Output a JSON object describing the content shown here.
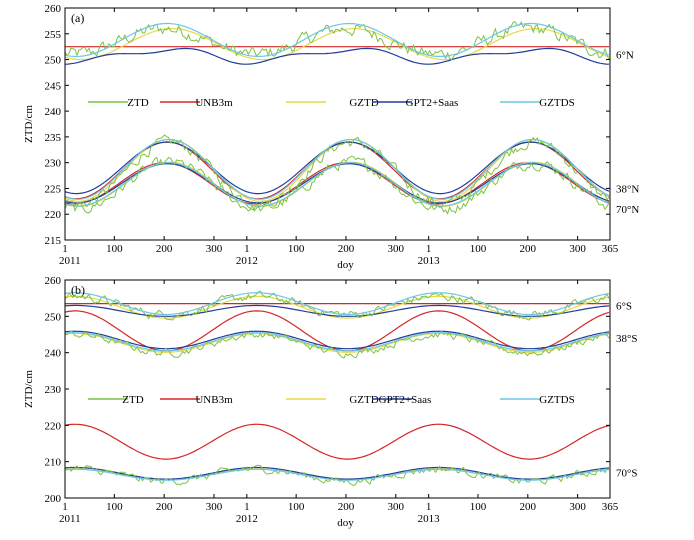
{
  "chart_data": [
    {
      "type": "line",
      "panel_label": "(a)",
      "ylabel": "ZTD/cm",
      "xlabel": "doy",
      "ylim": [
        215,
        260
      ],
      "yticks": [
        215,
        220,
        225,
        230,
        235,
        240,
        245,
        250,
        255,
        260
      ],
      "x_domain": [
        1,
        1095
      ],
      "xticks": [
        {
          "x": 1,
          "label": "1"
        },
        {
          "x": 100,
          "label": "100"
        },
        {
          "x": 200,
          "label": "200"
        },
        {
          "x": 300,
          "label": "300"
        },
        {
          "x": 366,
          "label": "1"
        },
        {
          "x": 465,
          "label": "100"
        },
        {
          "x": 565,
          "label": "200"
        },
        {
          "x": 665,
          "label": "300"
        },
        {
          "x": 731,
          "label": "1"
        },
        {
          "x": 830,
          "label": "100"
        },
        {
          "x": 930,
          "label": "200"
        },
        {
          "x": 1030,
          "label": "300"
        },
        {
          "x": 1095,
          "label": "365"
        }
      ],
      "year_labels": [
        {
          "x": 1,
          "label": "2011"
        },
        {
          "x": 366,
          "label": "2012"
        },
        {
          "x": 731,
          "label": "2013"
        }
      ],
      "legend": [
        "ZTD",
        "UNB3m",
        "GZTD",
        "GPT2+Saas",
        "GZTDS"
      ],
      "legend_placement": "middle",
      "latitude_labels": [
        {
          "label": "6°N",
          "y": 251
        },
        {
          "label": "38°N",
          "y": 225
        },
        {
          "label": "70°N",
          "y": 221
        }
      ],
      "series": [
        {
          "name": "ZTD",
          "site": "6°N",
          "mean": 253.5,
          "amp": 2.5,
          "phase_doy": 200,
          "noise": 1.4
        },
        {
          "name": "UNB3m",
          "site": "6°N",
          "mean": 252.5,
          "amp": 0.0,
          "phase_doy": 200
        },
        {
          "name": "GZTD",
          "site": "6°N",
          "mean": 253.0,
          "amp": 3.0,
          "phase_doy": 215
        },
        {
          "name": "GPT2+Saas",
          "site": "6°N",
          "mean": 250.8,
          "amp": 1.2,
          "phase_doy": 200,
          "semi_amp": 0.6
        },
        {
          "name": "GZTDS",
          "site": "6°N",
          "mean": 253.8,
          "amp": 3.2,
          "phase_doy": 205
        },
        {
          "name": "ZTD",
          "site": "38°N",
          "mean": 228.0,
          "amp": 6.0,
          "phase_doy": 210,
          "noise": 1.1
        },
        {
          "name": "UNB3m",
          "site": "38°N",
          "mean": 228.5,
          "amp": 5.5,
          "phase_doy": 205
        },
        {
          "name": "GZTD",
          "site": "38°N",
          "mean": 228.5,
          "amp": 6.0,
          "phase_doy": 210
        },
        {
          "name": "GPT2+Saas",
          "site": "38°N",
          "mean": 229.0,
          "amp": 5.0,
          "phase_doy": 205
        },
        {
          "name": "GZTDS",
          "site": "38°N",
          "mean": 228.7,
          "amp": 5.8,
          "phase_doy": 208
        },
        {
          "name": "ZTD",
          "site": "70°N",
          "mean": 225.5,
          "amp": 4.5,
          "phase_doy": 210,
          "noise": 1.1
        },
        {
          "name": "UNB3m",
          "site": "70°N",
          "mean": 226.0,
          "amp": 4.0,
          "phase_doy": 200
        },
        {
          "name": "GZTD",
          "site": "70°N",
          "mean": 225.8,
          "amp": 4.3,
          "phase_doy": 210
        },
        {
          "name": "GPT2+Saas",
          "site": "70°N",
          "mean": 226.0,
          "amp": 3.8,
          "phase_doy": 205
        },
        {
          "name": "GZTDS",
          "site": "70°N",
          "mean": 225.8,
          "amp": 4.2,
          "phase_doy": 208
        }
      ],
      "colors": {
        "ZTD": "#7cc242",
        "UNB3m": "#d62728",
        "GZTD": "#e8d84a",
        "GPT2+Saas": "#1f3f9a",
        "GZTDS": "#6ec6e6"
      }
    },
    {
      "type": "line",
      "panel_label": "(b)",
      "ylabel": "ZTD/cm",
      "xlabel": "doy",
      "ylim": [
        200,
        260
      ],
      "yticks": [
        200,
        210,
        220,
        230,
        240,
        250,
        260
      ],
      "x_domain": [
        1,
        1095
      ],
      "xticks": [
        {
          "x": 1,
          "label": "1"
        },
        {
          "x": 100,
          "label": "100"
        },
        {
          "x": 200,
          "label": "200"
        },
        {
          "x": 300,
          "label": "300"
        },
        {
          "x": 366,
          "label": "1"
        },
        {
          "x": 465,
          "label": "100"
        },
        {
          "x": 565,
          "label": "200"
        },
        {
          "x": 665,
          "label": "300"
        },
        {
          "x": 731,
          "label": "1"
        },
        {
          "x": 830,
          "label": "100"
        },
        {
          "x": 930,
          "label": "200"
        },
        {
          "x": 1030,
          "label": "300"
        },
        {
          "x": 1095,
          "label": "365"
        }
      ],
      "year_labels": [
        {
          "x": 1,
          "label": "2011"
        },
        {
          "x": 366,
          "label": "2012"
        },
        {
          "x": 731,
          "label": "2013"
        }
      ],
      "legend": [
        "ZTD",
        "UNB3m",
        "GZTD",
        "GPT2+Saas",
        "GZTDS"
      ],
      "legend_placement": "middle",
      "latitude_labels": [
        {
          "label": "6°S",
          "y": 253
        },
        {
          "label": "38°S",
          "y": 244
        },
        {
          "label": "70°S",
          "y": 207
        }
      ],
      "series": [
        {
          "name": "ZTD",
          "site": "6°S",
          "mean": 253.0,
          "amp": 2.5,
          "phase_doy": 20,
          "noise": 1.3
        },
        {
          "name": "UNB3m",
          "site": "6°S",
          "mean": 253.5,
          "amp": 0.0,
          "phase_doy": 20
        },
        {
          "name": "GZTD",
          "site": "6°S",
          "mean": 252.5,
          "amp": 3.0,
          "phase_doy": 20
        },
        {
          "name": "GPT2+Saas",
          "site": "6°S",
          "mean": 251.5,
          "amp": 1.5,
          "phase_doy": 20
        },
        {
          "name": "GZTDS",
          "site": "6°S",
          "mean": 253.5,
          "amp": 3.0,
          "phase_doy": 20
        },
        {
          "name": "UNB3m",
          "site": "38°S",
          "mean": 246.0,
          "amp": 5.5,
          "phase_doy": 20
        },
        {
          "name": "ZTD",
          "site": "38°S",
          "mean": 242.5,
          "amp": 2.5,
          "phase_doy": 20,
          "noise": 1.1
        },
        {
          "name": "GZTD",
          "site": "38°S",
          "mean": 242.7,
          "amp": 2.6,
          "phase_doy": 20
        },
        {
          "name": "GPT2+Saas",
          "site": "38°S",
          "mean": 243.5,
          "amp": 2.4,
          "phase_doy": 20
        },
        {
          "name": "GZTDS",
          "site": "38°S",
          "mean": 243.0,
          "amp": 2.5,
          "phase_doy": 20
        },
        {
          "name": "UNB3m",
          "site": "70°S",
          "mean": 215.5,
          "amp": 4.8,
          "phase_doy": 20
        },
        {
          "name": "ZTD",
          "site": "70°S",
          "mean": 206.3,
          "amp": 1.7,
          "phase_doy": 20,
          "noise": 1.1
        },
        {
          "name": "GZTD",
          "site": "70°S",
          "mean": 206.5,
          "amp": 1.5,
          "phase_doy": 20
        },
        {
          "name": "GPT2+Saas",
          "site": "70°S",
          "mean": 206.8,
          "amp": 1.6,
          "phase_doy": 20
        },
        {
          "name": "GZTDS",
          "site": "70°S",
          "mean": 206.4,
          "amp": 1.5,
          "phase_doy": 20
        }
      ],
      "colors": {
        "ZTD": "#7cc242",
        "UNB3m": "#d62728",
        "GZTD": "#e8d84a",
        "GPT2+Saas": "#1f3f9a",
        "GZTDS": "#6ec6e6"
      }
    }
  ]
}
